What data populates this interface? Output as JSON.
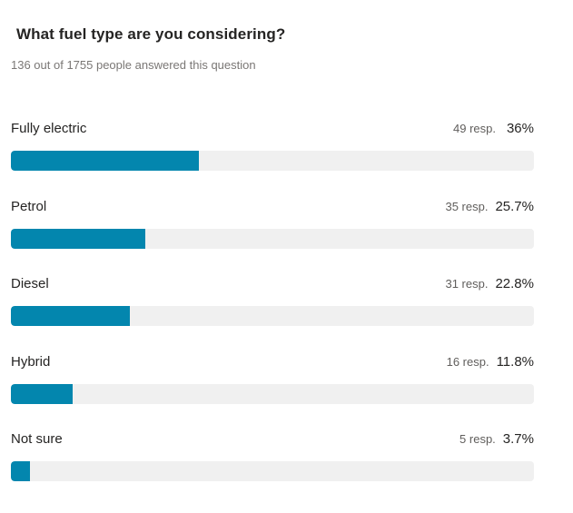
{
  "question": {
    "title": "What fuel type are you considering?",
    "answered_summary": "136 out of 1755 people answered this question"
  },
  "colors": {
    "bar_fill": "#0386ae",
    "bar_track": "#f0f0f0"
  },
  "results": [
    {
      "label": "Fully electric",
      "responses": "49 resp.",
      "percent_text": "36%",
      "percent": 36
    },
    {
      "label": "Petrol",
      "responses": "35 resp.",
      "percent_text": "25.7%",
      "percent": 25.7
    },
    {
      "label": "Diesel",
      "responses": "31 resp.",
      "percent_text": "22.8%",
      "percent": 22.8
    },
    {
      "label": "Hybrid",
      "responses": "16 resp.",
      "percent_text": "11.8%",
      "percent": 11.8
    },
    {
      "label": "Not sure",
      "responses": "5 resp.",
      "percent_text": "3.7%",
      "percent": 3.7
    }
  ]
}
